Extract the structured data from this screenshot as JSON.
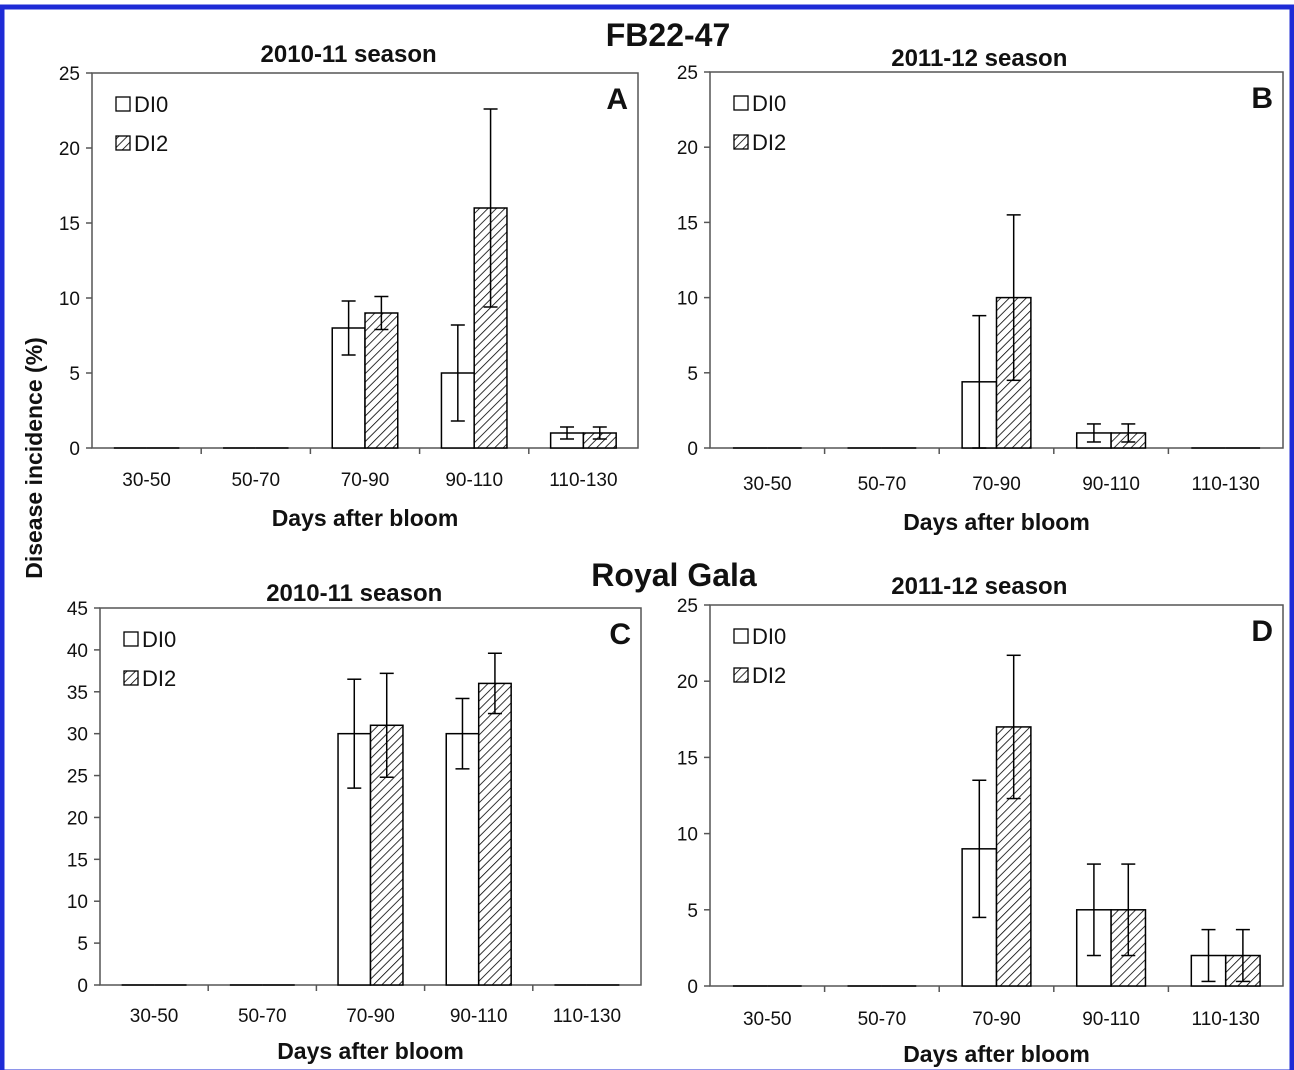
{
  "figure": {
    "ylabel": "Disease incidence (%)",
    "group_titles": [
      "FB22-47",
      "Royal Gala"
    ],
    "frame_color": "#1e2bd6",
    "hatch_color": "#000000"
  },
  "chart_data": [
    {
      "type": "bar",
      "group": "FB22-47",
      "letter": "A",
      "title": "2010-11 season",
      "xlabel": "Days after bloom",
      "ylabel": "Disease incidence (%)",
      "categories": [
        "30-50",
        "50-70",
        "70-90",
        "90-110",
        "110-130"
      ],
      "ylim": [
        0,
        25
      ],
      "yticks": [
        0,
        5,
        10,
        15,
        20,
        25
      ],
      "legend_position": "top-left",
      "series": [
        {
          "name": "DI0",
          "pattern": "open",
          "values": [
            0,
            0,
            8,
            5,
            1
          ],
          "errors": [
            0,
            0,
            1.8,
            3.2,
            0.4
          ]
        },
        {
          "name": "DI2",
          "pattern": "hatched",
          "values": [
            0,
            0,
            9,
            16,
            1
          ],
          "errors": [
            0,
            0,
            1.1,
            6.6,
            0.4
          ]
        }
      ]
    },
    {
      "type": "bar",
      "group": "FB22-47",
      "letter": "B",
      "title": "2011-12 season",
      "xlabel": "Days after bloom",
      "ylabel": "Disease incidence (%)",
      "categories": [
        "30-50",
        "50-70",
        "70-90",
        "90-110",
        "110-130"
      ],
      "ylim": [
        0,
        25
      ],
      "yticks": [
        0,
        5,
        10,
        15,
        20,
        25
      ],
      "legend_position": "top-left",
      "series": [
        {
          "name": "DI0",
          "pattern": "open",
          "values": [
            0,
            0,
            4.4,
            1,
            0
          ],
          "errors": [
            0,
            0,
            4.4,
            0.6,
            0
          ]
        },
        {
          "name": "DI2",
          "pattern": "hatched",
          "values": [
            0,
            0,
            10,
            1,
            0
          ],
          "errors": [
            0,
            0,
            5.5,
            0.6,
            0
          ]
        }
      ]
    },
    {
      "type": "bar",
      "group": "Royal Gala",
      "letter": "C",
      "title": "2010-11 season",
      "xlabel": "Days after bloom",
      "ylabel": "Disease incidence (%)",
      "categories": [
        "30-50",
        "50-70",
        "70-90",
        "90-110",
        "110-130"
      ],
      "ylim": [
        0,
        45
      ],
      "yticks": [
        0,
        5,
        10,
        15,
        20,
        25,
        30,
        35,
        40,
        45
      ],
      "legend_position": "top-left",
      "series": [
        {
          "name": "DI0",
          "pattern": "open",
          "values": [
            0,
            0,
            30,
            30,
            0
          ],
          "errors": [
            0,
            0,
            6.5,
            4.2,
            0
          ]
        },
        {
          "name": "DI2",
          "pattern": "hatched",
          "values": [
            0,
            0,
            31,
            36,
            0
          ],
          "errors": [
            0,
            0,
            6.2,
            3.6,
            0
          ]
        }
      ]
    },
    {
      "type": "bar",
      "group": "Royal Gala",
      "letter": "D",
      "title": "2011-12 season",
      "xlabel": "Days after bloom",
      "ylabel": "Disease incidence (%)",
      "categories": [
        "30-50",
        "50-70",
        "70-90",
        "90-110",
        "110-130"
      ],
      "ylim": [
        0,
        25
      ],
      "yticks": [
        0,
        5,
        10,
        15,
        20,
        25
      ],
      "legend_position": "top-left",
      "series": [
        {
          "name": "DI0",
          "pattern": "open",
          "values": [
            0,
            0,
            9,
            5,
            2
          ],
          "errors": [
            0,
            0,
            4.5,
            3,
            1.7
          ]
        },
        {
          "name": "DI2",
          "pattern": "hatched",
          "values": [
            0,
            0,
            17,
            5,
            2
          ],
          "errors": [
            0,
            0,
            4.7,
            3,
            1.7
          ]
        }
      ]
    }
  ]
}
